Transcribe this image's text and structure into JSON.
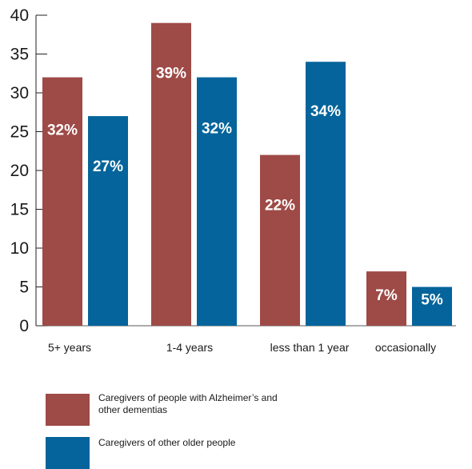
{
  "chart_data": {
    "type": "bar",
    "title": "",
    "xlabel": "",
    "ylabel": "",
    "ylim": [
      0,
      40
    ],
    "yticks": [
      0,
      5,
      10,
      15,
      20,
      25,
      30,
      35,
      40
    ],
    "grid": false,
    "legend_position": "bottom-left",
    "categories": [
      "5+ years",
      "1-4 years",
      "less than 1 year",
      "occasionally"
    ],
    "series": [
      {
        "name": "Caregivers of people with Alzheimer’s and other dementias",
        "color": "#9e4a46",
        "values": [
          32,
          39,
          22,
          7
        ],
        "labels": [
          "32%",
          "39%",
          "22%",
          "7%"
        ]
      },
      {
        "name": "Caregivers of other older people",
        "color": "#04649b",
        "values": [
          27,
          32,
          34,
          5
        ],
        "labels": [
          "27%",
          "32%",
          "34%",
          "5%"
        ]
      }
    ]
  }
}
